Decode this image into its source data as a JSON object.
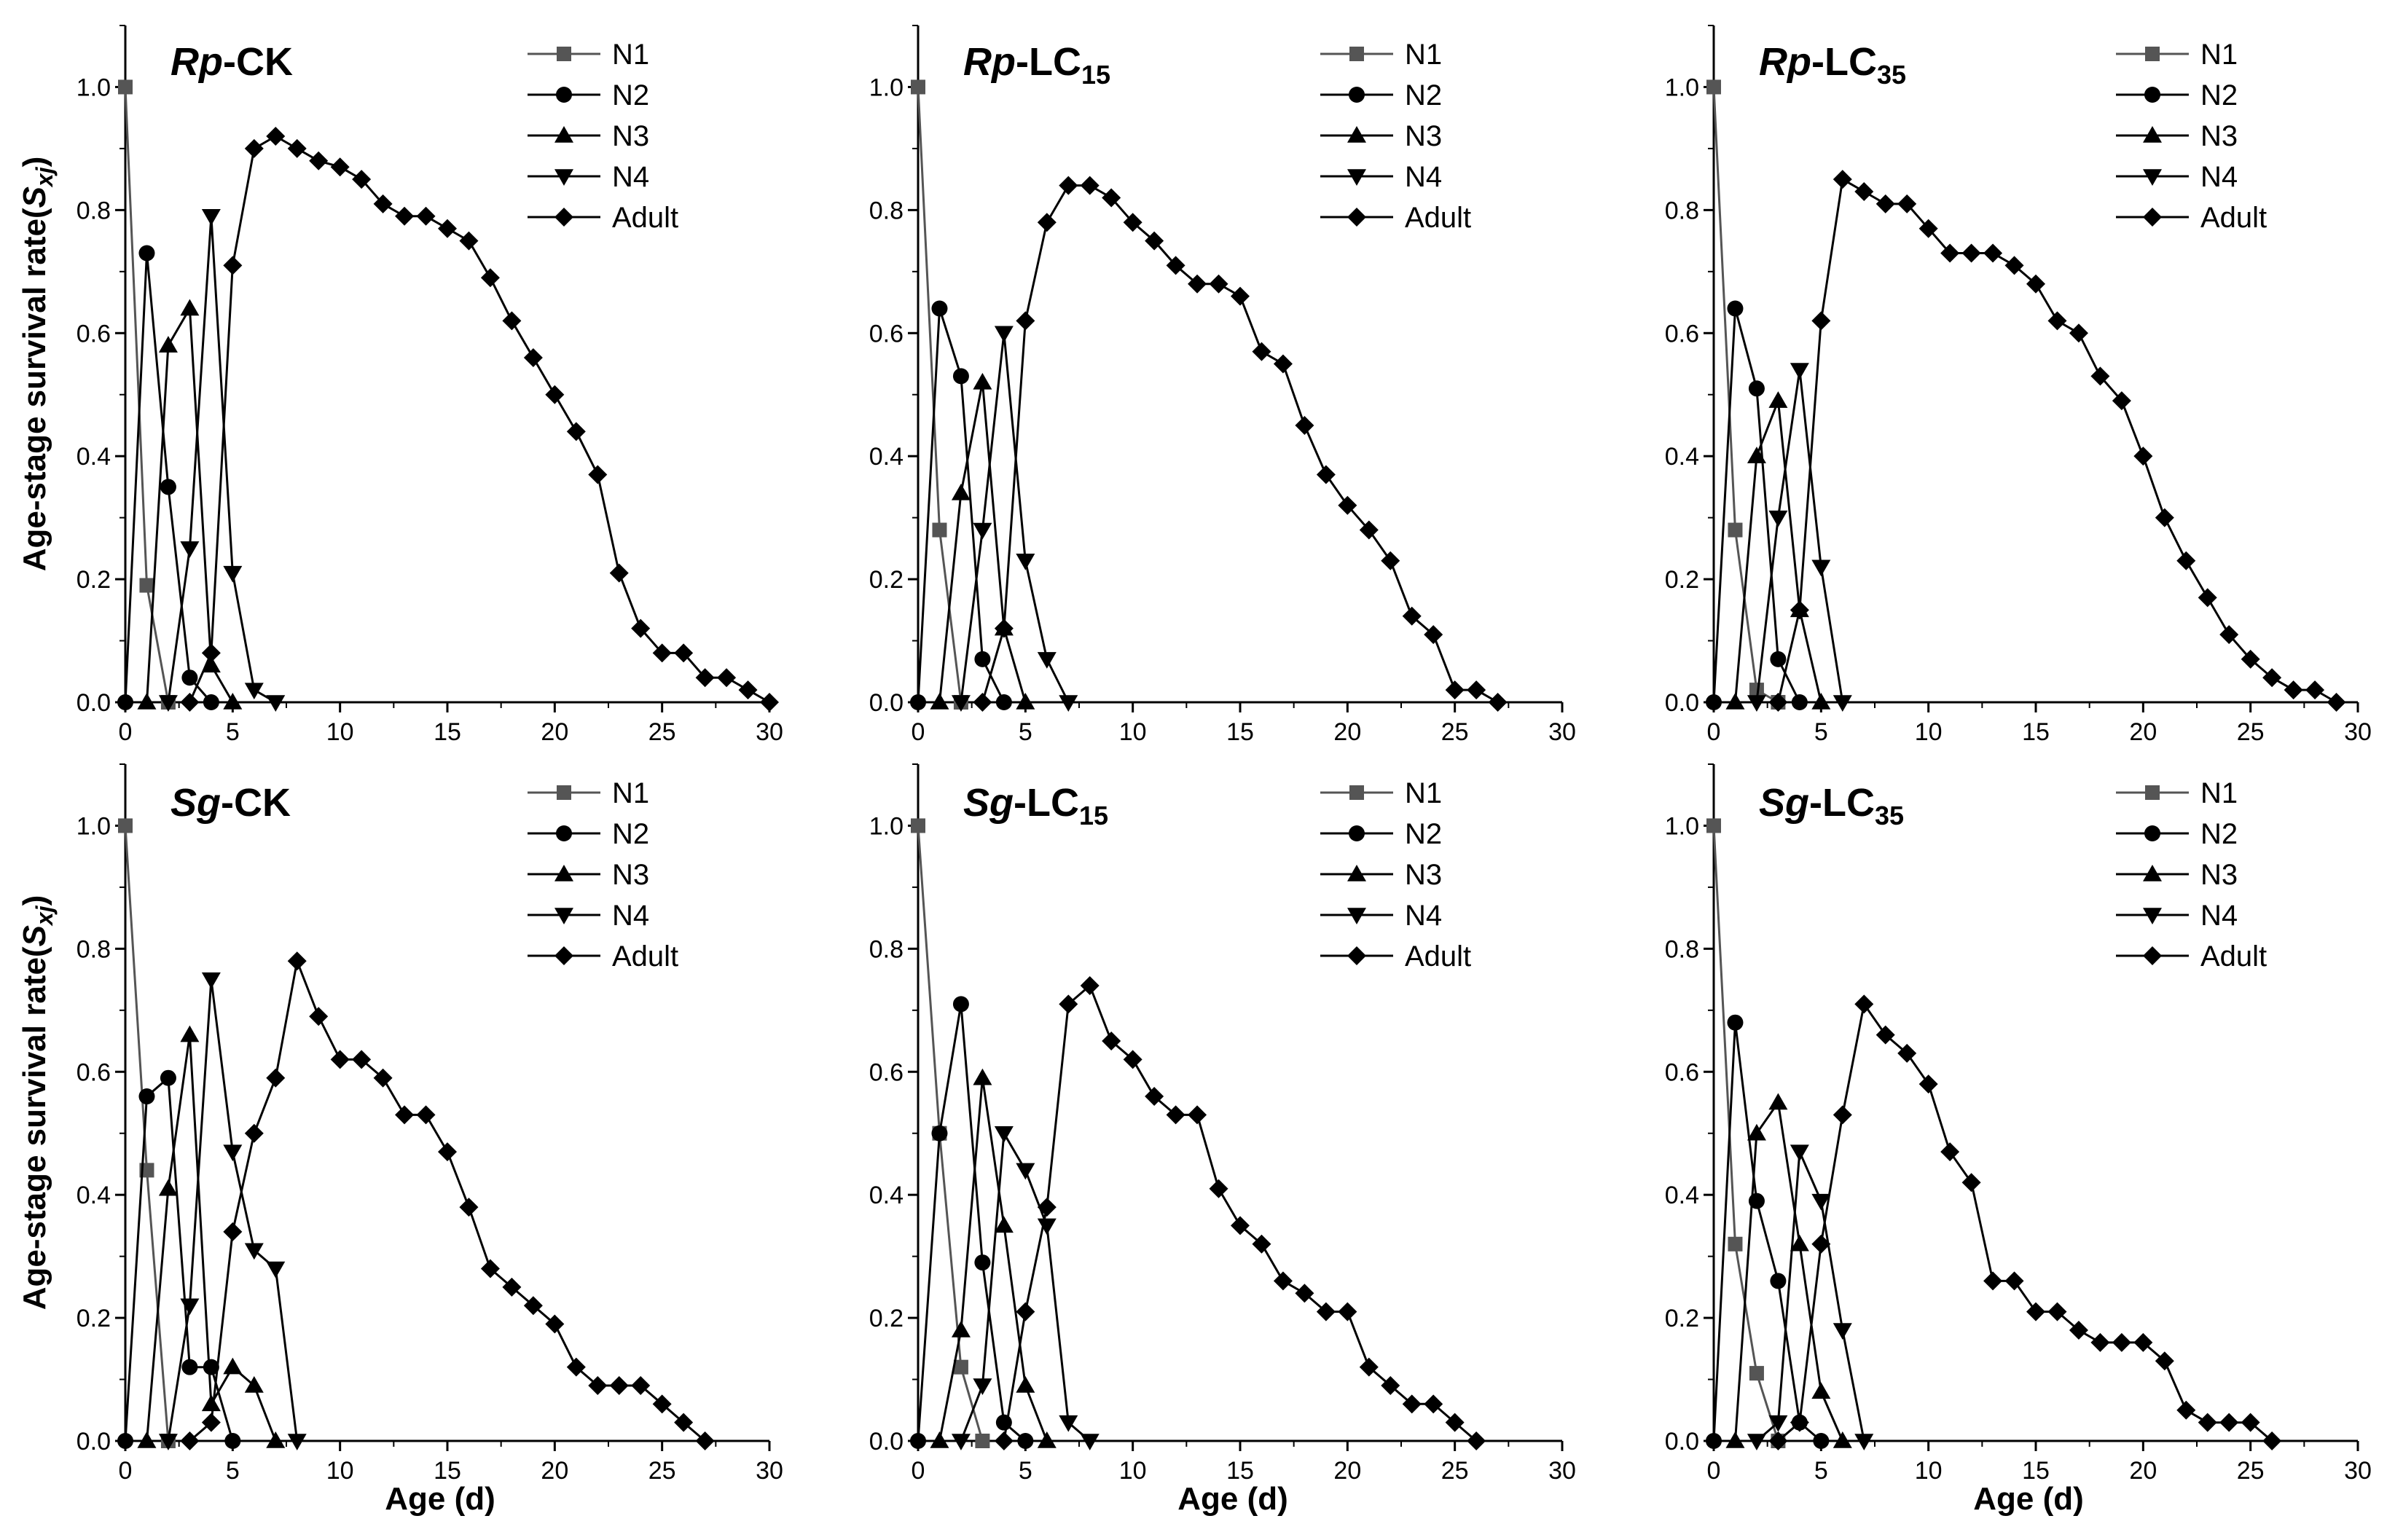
{
  "figure": {
    "ylabel_prefix": "Age-stage survival rate(",
    "ylabel_symbol": "S",
    "ylabel_subscript": "xj",
    "ylabel_suffix": ")",
    "xlabel": "Age (d)"
  },
  "chart_data": [
    {
      "type": "line",
      "title_species": "Rp",
      "title_rest": "-CK",
      "title_sub": "",
      "xlim": [
        0,
        30
      ],
      "ylim": [
        0,
        1.1
      ],
      "xticks": [
        0,
        5,
        10,
        15,
        20,
        25,
        30
      ],
      "yticks": [
        "0.0",
        "0.2",
        "0.4",
        "0.6",
        "0.8",
        "1.0"
      ],
      "legend": "top-right",
      "series": [
        {
          "name": "N1",
          "marker": "square",
          "color": "#555555",
          "x": [
            0,
            1,
            2
          ],
          "y": [
            1.0,
            0.19,
            0.0
          ]
        },
        {
          "name": "N2",
          "marker": "circle",
          "color": "#000000",
          "x": [
            0,
            1,
            2,
            3,
            4
          ],
          "y": [
            0.0,
            0.73,
            0.35,
            0.04,
            0.0
          ]
        },
        {
          "name": "N3",
          "marker": "triangle-up",
          "color": "#000000",
          "x": [
            1,
            2,
            3,
            4,
            5
          ],
          "y": [
            0.0,
            0.58,
            0.64,
            0.06,
            0.0
          ]
        },
        {
          "name": "N4",
          "marker": "triangle-down",
          "color": "#000000",
          "x": [
            2,
            3,
            4,
            5,
            6,
            7
          ],
          "y": [
            0.0,
            0.25,
            0.79,
            0.21,
            0.02,
            0.0
          ]
        },
        {
          "name": "Adult",
          "marker": "diamond",
          "color": "#000000",
          "x": [
            3,
            4,
            5,
            6,
            7,
            8,
            9,
            10,
            11,
            12,
            13,
            14,
            15,
            16,
            17,
            18,
            19,
            20,
            21,
            22,
            23,
            24,
            25,
            26,
            27,
            28,
            29,
            30
          ],
          "y": [
            0.0,
            0.08,
            0.71,
            0.9,
            0.92,
            0.9,
            0.88,
            0.87,
            0.85,
            0.81,
            0.79,
            0.79,
            0.77,
            0.75,
            0.69,
            0.62,
            0.56,
            0.5,
            0.44,
            0.37,
            0.21,
            0.12,
            0.08,
            0.08,
            0.04,
            0.04,
            0.02,
            0.0
          ]
        }
      ]
    },
    {
      "type": "line",
      "title_species": "Rp",
      "title_rest": "-LC",
      "title_sub": "15",
      "xlim": [
        0,
        30
      ],
      "ylim": [
        0,
        1.1
      ],
      "xticks": [
        0,
        5,
        10,
        15,
        20,
        25,
        30
      ],
      "yticks": [
        "0.0",
        "0.2",
        "0.4",
        "0.6",
        "0.8",
        "1.0"
      ],
      "legend": "top-right",
      "series": [
        {
          "name": "N1",
          "marker": "square",
          "color": "#555555",
          "x": [
            0,
            1,
            2
          ],
          "y": [
            1.0,
            0.28,
            0.0
          ]
        },
        {
          "name": "N2",
          "marker": "circle",
          "color": "#000000",
          "x": [
            0,
            1,
            2,
            3,
            4
          ],
          "y": [
            0.0,
            0.64,
            0.53,
            0.07,
            0.0
          ]
        },
        {
          "name": "N3",
          "marker": "triangle-up",
          "color": "#000000",
          "x": [
            1,
            2,
            3,
            4,
            5
          ],
          "y": [
            0.0,
            0.34,
            0.52,
            0.12,
            0.0
          ]
        },
        {
          "name": "N4",
          "marker": "triangle-down",
          "color": "#000000",
          "x": [
            2,
            3,
            4,
            5,
            6,
            7
          ],
          "y": [
            0.0,
            0.28,
            0.6,
            0.23,
            0.07,
            0.0
          ]
        },
        {
          "name": "Adult",
          "marker": "diamond",
          "color": "#000000",
          "x": [
            3,
            4,
            5,
            6,
            7,
            8,
            9,
            10,
            11,
            12,
            13,
            14,
            15,
            16,
            17,
            18,
            19,
            20,
            21,
            22,
            23,
            24,
            25,
            26,
            27
          ],
          "y": [
            0.0,
            0.12,
            0.62,
            0.78,
            0.84,
            0.84,
            0.82,
            0.78,
            0.75,
            0.71,
            0.68,
            0.68,
            0.66,
            0.57,
            0.55,
            0.45,
            0.37,
            0.32,
            0.28,
            0.23,
            0.14,
            0.11,
            0.02,
            0.02,
            0.0
          ]
        }
      ]
    },
    {
      "type": "line",
      "title_species": "Rp",
      "title_rest": "-LC",
      "title_sub": "35",
      "xlim": [
        0,
        30
      ],
      "ylim": [
        0,
        1.1
      ],
      "xticks": [
        0,
        5,
        10,
        15,
        20,
        25,
        30
      ],
      "yticks": [
        "0.0",
        "0.2",
        "0.4",
        "0.6",
        "0.8",
        "1.0"
      ],
      "legend": "top-right",
      "series": [
        {
          "name": "N1",
          "marker": "square",
          "color": "#555555",
          "x": [
            0,
            1,
            2,
            3
          ],
          "y": [
            1.0,
            0.28,
            0.02,
            0.0
          ]
        },
        {
          "name": "N2",
          "marker": "circle",
          "color": "#000000",
          "x": [
            0,
            1,
            2,
            3,
            4
          ],
          "y": [
            0.0,
            0.64,
            0.51,
            0.07,
            0.0
          ]
        },
        {
          "name": "N3",
          "marker": "triangle-up",
          "color": "#000000",
          "x": [
            1,
            2,
            3,
            4,
            5
          ],
          "y": [
            0.0,
            0.4,
            0.49,
            0.15,
            0.0
          ]
        },
        {
          "name": "N4",
          "marker": "triangle-down",
          "color": "#000000",
          "x": [
            2,
            3,
            4,
            5,
            6
          ],
          "y": [
            0.0,
            0.3,
            0.54,
            0.22,
            0.0
          ]
        },
        {
          "name": "Adult",
          "marker": "diamond",
          "color": "#000000",
          "x": [
            3,
            4,
            5,
            6,
            7,
            8,
            9,
            10,
            11,
            12,
            13,
            14,
            15,
            16,
            17,
            18,
            19,
            20,
            21,
            22,
            23,
            24,
            25,
            26,
            27,
            28,
            29
          ],
          "y": [
            0.0,
            0.15,
            0.62,
            0.85,
            0.83,
            0.81,
            0.81,
            0.77,
            0.73,
            0.73,
            0.73,
            0.71,
            0.68,
            0.62,
            0.6,
            0.53,
            0.49,
            0.4,
            0.3,
            0.23,
            0.17,
            0.11,
            0.07,
            0.04,
            0.02,
            0.02,
            0.0
          ]
        }
      ]
    },
    {
      "type": "line",
      "title_species": "Sg",
      "title_rest": "-CK",
      "title_sub": "",
      "xlim": [
        0,
        30
      ],
      "ylim": [
        0,
        1.1
      ],
      "xticks": [
        0,
        5,
        10,
        15,
        20,
        25,
        30
      ],
      "yticks": [
        "0.0",
        "0.2",
        "0.4",
        "0.6",
        "0.8",
        "1.0"
      ],
      "legend": "top-right",
      "series": [
        {
          "name": "N1",
          "marker": "square",
          "color": "#555555",
          "x": [
            0,
            1,
            2
          ],
          "y": [
            1.0,
            0.44,
            0.0
          ]
        },
        {
          "name": "N2",
          "marker": "circle",
          "color": "#000000",
          "x": [
            0,
            1,
            2,
            3,
            4,
            5
          ],
          "y": [
            0.0,
            0.56,
            0.59,
            0.12,
            0.12,
            0.0
          ]
        },
        {
          "name": "N3",
          "marker": "triangle-up",
          "color": "#000000",
          "x": [
            1,
            2,
            3,
            4,
            5,
            6,
            7
          ],
          "y": [
            0.0,
            0.41,
            0.66,
            0.06,
            0.12,
            0.09,
            0.0
          ]
        },
        {
          "name": "N4",
          "marker": "triangle-down",
          "color": "#000000",
          "x": [
            2,
            3,
            4,
            5,
            6,
            7,
            8
          ],
          "y": [
            0.0,
            0.22,
            0.75,
            0.47,
            0.31,
            0.28,
            0.0
          ]
        },
        {
          "name": "Adult",
          "marker": "diamond",
          "color": "#000000",
          "x": [
            3,
            4,
            5,
            6,
            7,
            8,
            9,
            10,
            11,
            12,
            13,
            14,
            15,
            16,
            17,
            18,
            19,
            20,
            21,
            22,
            23,
            24,
            25,
            26,
            27
          ],
          "y": [
            0.0,
            0.03,
            0.34,
            0.5,
            0.59,
            0.78,
            0.69,
            0.62,
            0.62,
            0.59,
            0.53,
            0.53,
            0.47,
            0.38,
            0.28,
            0.25,
            0.22,
            0.19,
            0.12,
            0.09,
            0.09,
            0.09,
            0.06,
            0.03,
            0.0
          ]
        }
      ]
    },
    {
      "type": "line",
      "title_species": "Sg",
      "title_rest": "-LC",
      "title_sub": "15",
      "xlim": [
        0,
        30
      ],
      "ylim": [
        0,
        1.1
      ],
      "xticks": [
        0,
        5,
        10,
        15,
        20,
        25,
        30
      ],
      "yticks": [
        "0.0",
        "0.2",
        "0.4",
        "0.6",
        "0.8",
        "1.0"
      ],
      "legend": "top-right",
      "series": [
        {
          "name": "N1",
          "marker": "square",
          "color": "#555555",
          "x": [
            0,
            1,
            2,
            3
          ],
          "y": [
            1.0,
            0.5,
            0.12,
            0.0
          ]
        },
        {
          "name": "N2",
          "marker": "circle",
          "color": "#000000",
          "x": [
            0,
            1,
            2,
            3,
            4,
            5
          ],
          "y": [
            0.0,
            0.5,
            0.71,
            0.29,
            0.03,
            0.0
          ]
        },
        {
          "name": "N3",
          "marker": "triangle-up",
          "color": "#000000",
          "x": [
            1,
            2,
            3,
            4,
            5,
            6
          ],
          "y": [
            0.0,
            0.18,
            0.59,
            0.35,
            0.09,
            0.0
          ]
        },
        {
          "name": "N4",
          "marker": "triangle-down",
          "color": "#000000",
          "x": [
            2,
            3,
            4,
            5,
            6,
            7,
            8
          ],
          "y": [
            0.0,
            0.09,
            0.5,
            0.44,
            0.35,
            0.03,
            0.0
          ]
        },
        {
          "name": "Adult",
          "marker": "diamond",
          "color": "#000000",
          "x": [
            4,
            5,
            6,
            7,
            8,
            9,
            10,
            11,
            12,
            13,
            14,
            15,
            16,
            17,
            18,
            19,
            20,
            21,
            22,
            23,
            24,
            25,
            26
          ],
          "y": [
            0.0,
            0.21,
            0.38,
            0.71,
            0.74,
            0.65,
            0.62,
            0.56,
            0.53,
            0.53,
            0.41,
            0.35,
            0.32,
            0.26,
            0.24,
            0.21,
            0.21,
            0.12,
            0.09,
            0.06,
            0.06,
            0.03,
            0.0
          ]
        }
      ]
    },
    {
      "type": "line",
      "title_species": "Sg",
      "title_rest": "-LC",
      "title_sub": "35",
      "xlim": [
        0,
        30
      ],
      "ylim": [
        0,
        1.1
      ],
      "xticks": [
        0,
        5,
        10,
        15,
        20,
        25,
        30
      ],
      "yticks": [
        "0.0",
        "0.2",
        "0.4",
        "0.6",
        "0.8",
        "1.0"
      ],
      "legend": "top-right",
      "series": [
        {
          "name": "N1",
          "marker": "square",
          "color": "#555555",
          "x": [
            0,
            1,
            2,
            3
          ],
          "y": [
            1.0,
            0.32,
            0.11,
            0.0
          ]
        },
        {
          "name": "N2",
          "marker": "circle",
          "color": "#000000",
          "x": [
            0,
            1,
            2,
            3,
            4,
            5
          ],
          "y": [
            0.0,
            0.68,
            0.39,
            0.26,
            0.03,
            0.0
          ]
        },
        {
          "name": "N3",
          "marker": "triangle-up",
          "color": "#000000",
          "x": [
            1,
            2,
            3,
            4,
            5,
            6
          ],
          "y": [
            0.0,
            0.5,
            0.55,
            0.32,
            0.08,
            0.0
          ]
        },
        {
          "name": "N4",
          "marker": "triangle-down",
          "color": "#000000",
          "x": [
            2,
            3,
            4,
            5,
            6,
            7
          ],
          "y": [
            0.0,
            0.03,
            0.47,
            0.39,
            0.18,
            0.0
          ]
        },
        {
          "name": "Adult",
          "marker": "diamond",
          "color": "#000000",
          "x": [
            3,
            4,
            5,
            6,
            7,
            8,
            9,
            10,
            11,
            12,
            13,
            14,
            15,
            16,
            17,
            18,
            19,
            20,
            21,
            22,
            23,
            24,
            25,
            26
          ],
          "y": [
            0.0,
            0.03,
            0.32,
            0.53,
            0.71,
            0.66,
            0.63,
            0.58,
            0.47,
            0.42,
            0.26,
            0.26,
            0.21,
            0.21,
            0.18,
            0.16,
            0.16,
            0.16,
            0.13,
            0.05,
            0.03,
            0.03,
            0.03,
            0.0
          ]
        }
      ]
    }
  ]
}
